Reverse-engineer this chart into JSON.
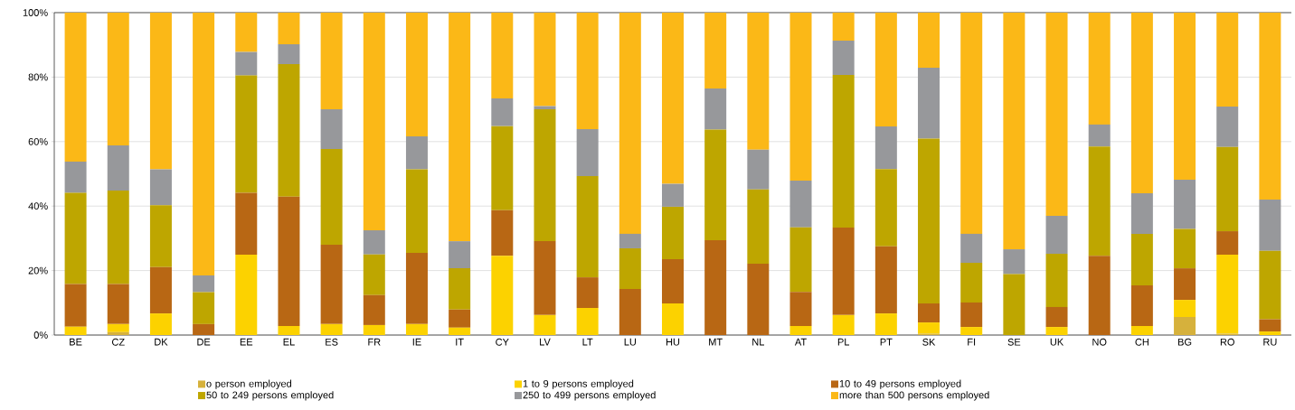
{
  "chart_data": {
    "type": "bar",
    "stacked": true,
    "categories": [
      "BE",
      "CZ",
      "DK",
      "DE",
      "EE",
      "EL",
      "ES",
      "FR",
      "IE",
      "IT",
      "CY",
      "LV",
      "LT",
      "LU",
      "HU",
      "MT",
      "NL",
      "AT",
      "PL",
      "PT",
      "SK",
      "FI",
      "SE",
      "UK",
      "NO",
      "CH",
      "BG",
      "RO",
      "RU"
    ],
    "series": [
      {
        "name": "o person employed",
        "color": "#d6b13c",
        "values": [
          0,
          0.9,
          0,
          0,
          0,
          0,
          0,
          0,
          0,
          0,
          0,
          0,
          0,
          0,
          0,
          0,
          0,
          0,
          0,
          0,
          0.4,
          0,
          0,
          0,
          0,
          0,
          5.6,
          0.4,
          0
        ]
      },
      {
        "name": "1 to 9 persons employed",
        "color": "#fcd200",
        "values": [
          2.6,
          2.5,
          6.7,
          0,
          24.9,
          2.8,
          3.4,
          3.1,
          3.4,
          2.3,
          24.6,
          6.2,
          8.4,
          0,
          9.8,
          0,
          0,
          2.8,
          6.2,
          6.7,
          3.5,
          2.5,
          0,
          2.5,
          0,
          2.8,
          5.3,
          24.5,
          1.1
        ]
      },
      {
        "name": "10 to 49 persons employed",
        "color": "#b86714",
        "values": [
          13.2,
          12.4,
          14.4,
          3.4,
          19.2,
          40.1,
          24.6,
          9.3,
          22.1,
          5.6,
          14.1,
          22.9,
          9.5,
          14.3,
          13.7,
          29.4,
          22.1,
          10.6,
          27.1,
          20.8,
          5.9,
          7.6,
          0,
          6.2,
          24.6,
          12.6,
          9.8,
          7.3,
          3.8
        ]
      },
      {
        "name": "50 to 249 persons employed",
        "color": "#bea600",
        "values": [
          28.3,
          29.0,
          19.2,
          9.9,
          36.4,
          41.1,
          29.7,
          12.6,
          25.9,
          12.8,
          26.1,
          40.9,
          31.4,
          12.6,
          16.3,
          34.3,
          23.1,
          20.0,
          47.4,
          24.0,
          51.1,
          12.3,
          18.9,
          16.5,
          33.9,
          16.0,
          12.2,
          26.1,
          21.2
        ]
      },
      {
        "name": "250 to 499 persons employed",
        "color": "#97989b",
        "values": [
          9.7,
          14.0,
          11.1,
          5.2,
          7.3,
          6.2,
          12.3,
          7.5,
          10.2,
          8.4,
          8.6,
          1.0,
          14.6,
          4.5,
          7.1,
          12.8,
          12.3,
          14.5,
          10.6,
          13.2,
          22.0,
          9.0,
          7.7,
          11.8,
          6.8,
          12.6,
          15.3,
          12.6,
          15.9
        ]
      },
      {
        "name": "more than 500 persons employed",
        "color": "#fbb817",
        "values": [
          46.2,
          41.2,
          48.6,
          81.5,
          12.2,
          9.8,
          30.0,
          67.5,
          38.4,
          70.9,
          26.6,
          29.0,
          36.1,
          68.6,
          53.1,
          23.5,
          42.5,
          52.1,
          8.7,
          35.3,
          17.1,
          68.6,
          73.4,
          63.0,
          34.7,
          56.0,
          51.8,
          29.1,
          58.0
        ]
      }
    ],
    "ylim": [
      0,
      100
    ],
    "yticks": [
      {
        "value": 0,
        "label": "0%"
      },
      {
        "value": 20,
        "label": "20%"
      },
      {
        "value": 40,
        "label": "40%"
      },
      {
        "value": 60,
        "label": "60%"
      },
      {
        "value": 80,
        "label": "80%"
      },
      {
        "value": 100,
        "label": "100%"
      }
    ],
    "grid": "y",
    "legend": "bottom"
  }
}
